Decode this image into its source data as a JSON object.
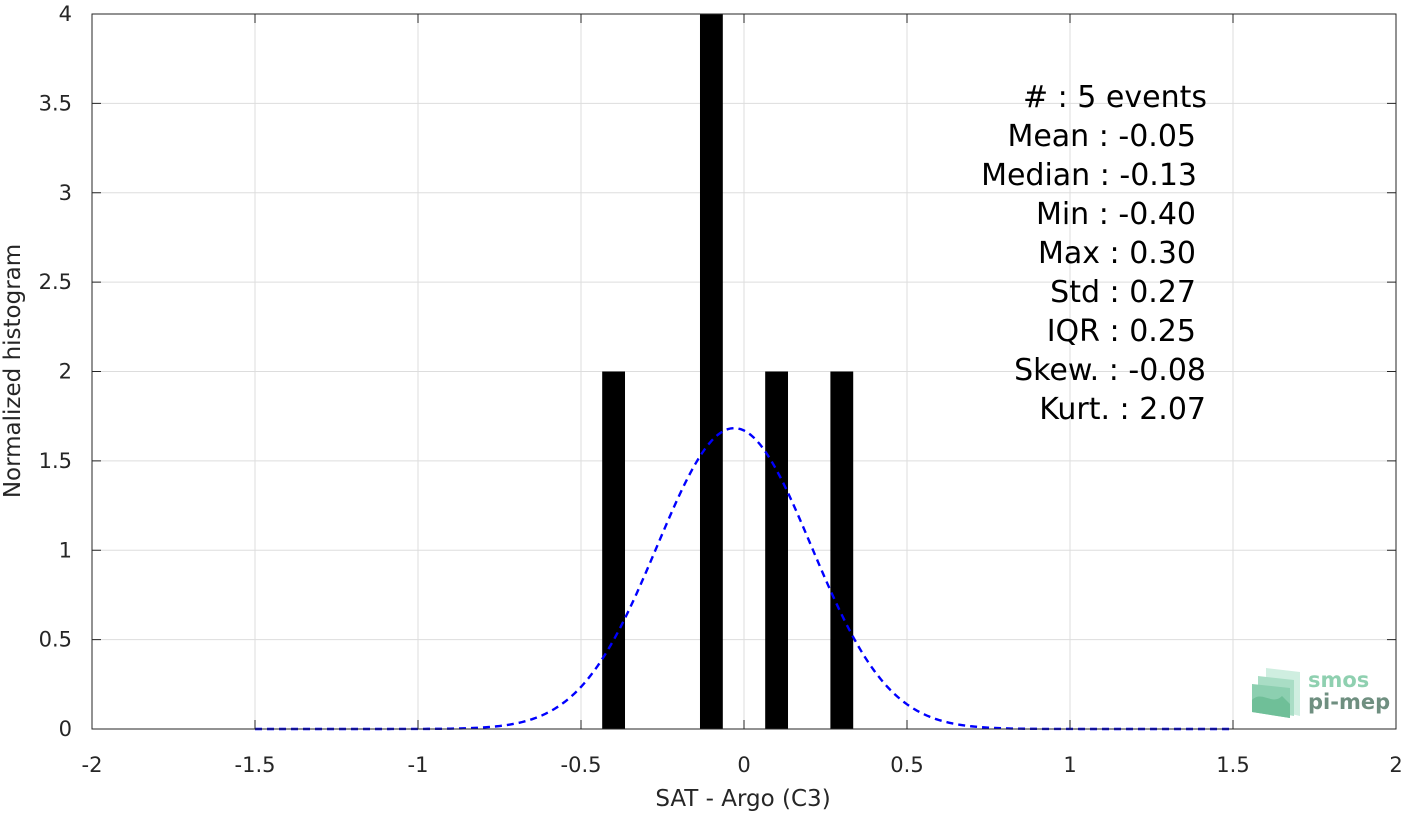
{
  "chart_data": {
    "type": "bar",
    "xlabel": "SAT - Argo (C3)",
    "ylabel": "Normalized histogram",
    "xlim": [
      -2,
      2
    ],
    "ylim": [
      0,
      4
    ],
    "xticks": [
      -2,
      -1.5,
      -1,
      -0.5,
      0,
      0.5,
      1,
      1.5,
      2
    ],
    "xtick_labels": [
      "-2",
      "-1.5",
      "-1",
      "-0.5",
      "0",
      "0.5",
      "1",
      "1.5",
      "2"
    ],
    "yticks": [
      0,
      0.5,
      1,
      1.5,
      2,
      2.5,
      3,
      3.5,
      4
    ],
    "ytick_labels": [
      "0",
      "0.5",
      "1",
      "1.5",
      "2",
      "2.5",
      "3",
      "3.5",
      "4"
    ],
    "grid": true,
    "bar_width": 0.07,
    "bar_color": "#000000",
    "bars": [
      {
        "x": -0.4,
        "value": 2
      },
      {
        "x": -0.1,
        "value": 4
      },
      {
        "x": 0.1,
        "value": 2
      },
      {
        "x": 0.3,
        "value": 2
      }
    ],
    "fit_curve": {
      "style": "dashed",
      "color": "#0000ff",
      "mean": -0.03,
      "std": 0.237,
      "x_range": [
        -1.5,
        1.5
      ]
    },
    "annotations": [
      "#  : 5 events",
      "Mean : -0.05",
      "Median : -0.13",
      "Min : -0.40",
      "Max : 0.30",
      "Std : 0.27",
      "IQR : 0.25",
      "Skew. : -0.08",
      "Kurt. : 2.07"
    ]
  },
  "logo": {
    "line1": "smos",
    "line2": "pi-mep",
    "color_light": "#8fd0b0",
    "color_dark": "#6f8f80"
  }
}
